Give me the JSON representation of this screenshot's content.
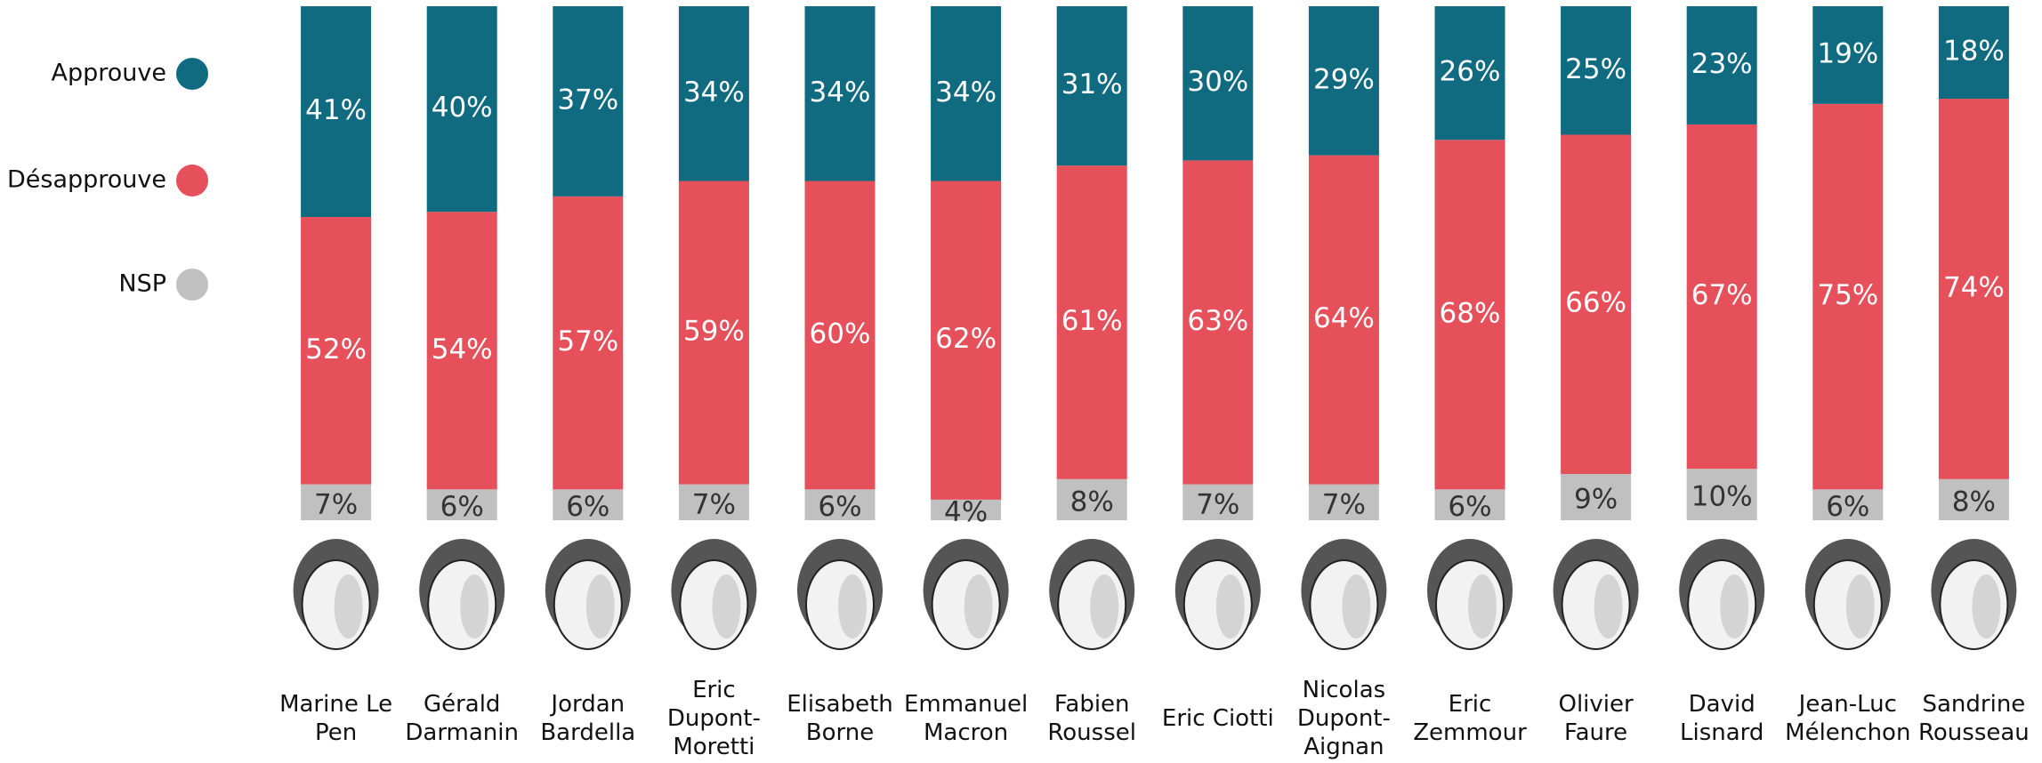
{
  "chart_data": {
    "type": "bar",
    "stacked": true,
    "categories": [
      "Marine Le Pen",
      "Gérald Darmanin",
      "Jordan Bardella",
      "Eric Dupont-Moretti",
      "Elisabeth Borne",
      "Emmanuel Macron",
      "Fabien Roussel",
      "Eric Ciotti",
      "Nicolas Dupont-Aignan",
      "Eric Zemmour",
      "Olivier Faure",
      "David Lisnard",
      "Jean-Luc Mélenchon",
      "Sandrine Rousseau"
    ],
    "series": [
      {
        "name": "Approuve",
        "color": "#106b80",
        "values": [
          41,
          40,
          37,
          34,
          34,
          34,
          31,
          30,
          29,
          26,
          25,
          23,
          19,
          18
        ],
        "value_labels": [
          "41%",
          "40%",
          "37%",
          "34%",
          "34%",
          "34%",
          "31%",
          "30%",
          "29%",
          "26%",
          "25%",
          "23%",
          "19%",
          "18%"
        ]
      },
      {
        "name": "Désapprouve",
        "color": "#e5505a",
        "values": [
          52,
          54,
          57,
          59,
          60,
          62,
          61,
          63,
          64,
          68,
          66,
          67,
          75,
          74
        ],
        "value_labels": [
          "52%",
          "54%",
          "57%",
          "59%",
          "60%",
          "62%",
          "61%",
          "63%",
          "64%",
          "68%",
          "66%",
          "67%",
          "75%",
          "74%"
        ]
      },
      {
        "name": "NSP",
        "color": "#c0c0c0",
        "values": [
          7,
          6,
          6,
          7,
          6,
          4,
          8,
          7,
          7,
          6,
          9,
          10,
          6,
          8
        ],
        "value_labels": [
          "7%",
          "6%",
          "6%",
          "7%",
          "6%",
          "4%",
          "8%",
          "7%",
          "7%",
          "6%",
          "9%",
          "10%",
          "6%",
          "8%"
        ]
      }
    ],
    "ylim": [
      0,
      100
    ],
    "legend": "left"
  }
}
